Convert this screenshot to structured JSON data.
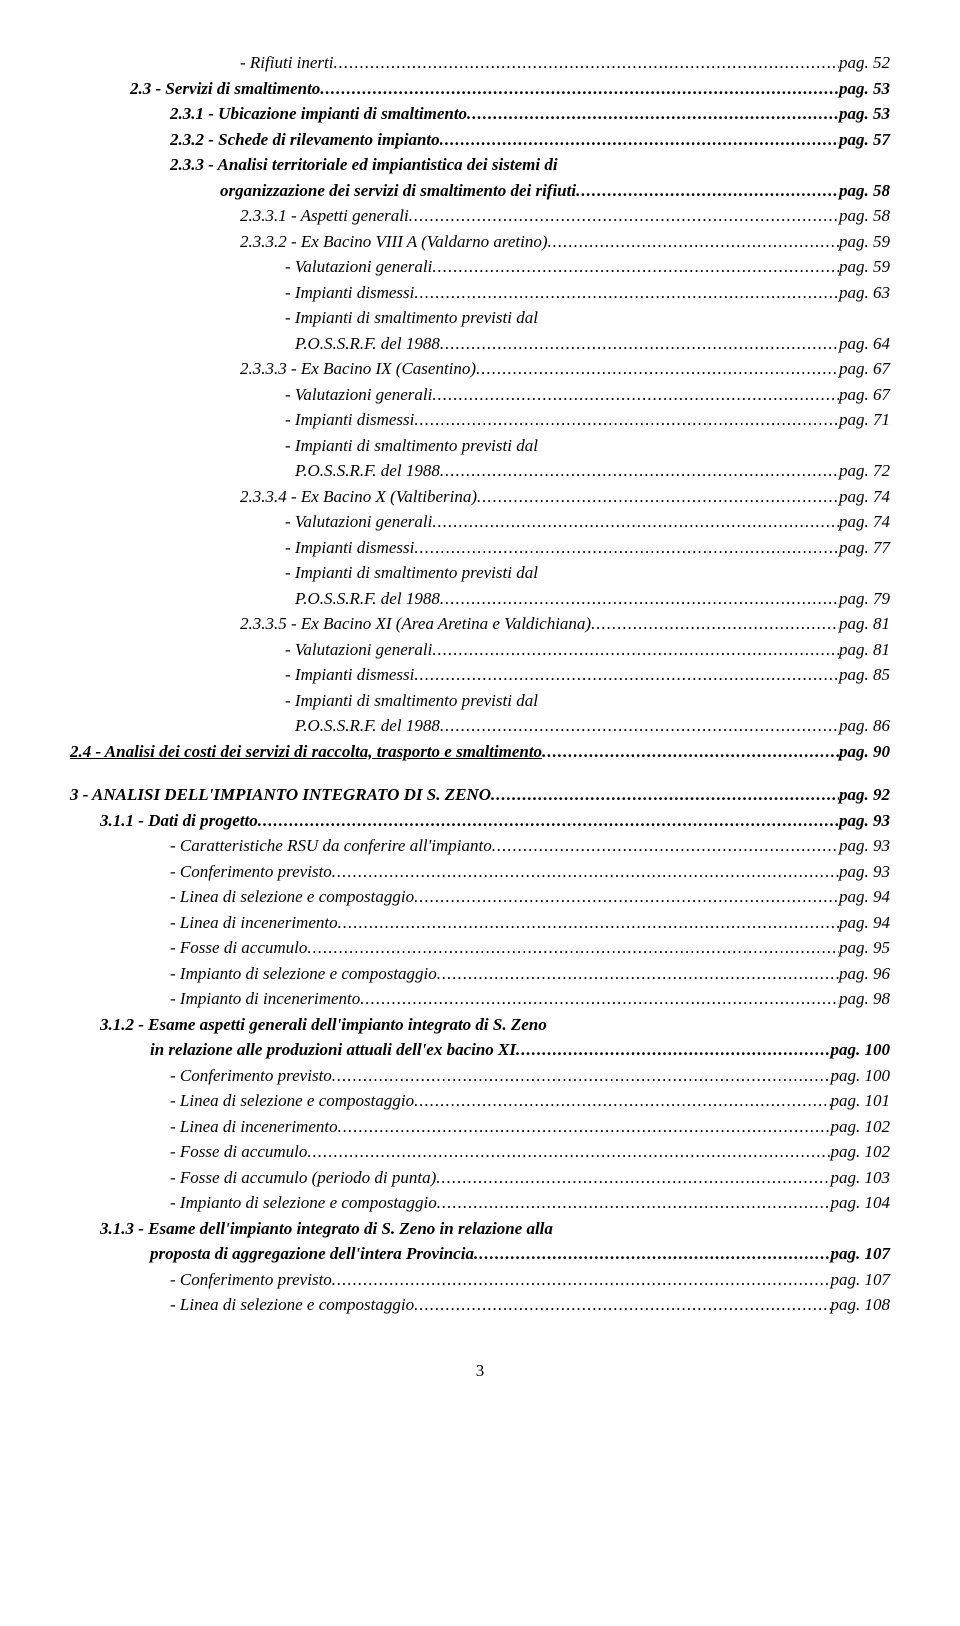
{
  "lines": [
    {
      "cls": "indent3 italic",
      "text": "- Rifiuti inerti",
      "page": "pag.  52"
    },
    {
      "cls": "indent1 boldital",
      "text": "2.3 - Servizi di smaltimento",
      "page": "pag.  53"
    },
    {
      "cls": "indent2 boldital",
      "text": "2.3.1 - Ubicazione impianti di smaltimento",
      "page": "pag.  53"
    },
    {
      "cls": "indent2 boldital",
      "text": "2.3.2 - Schede di rilevamento impianto",
      "page": "pag.  57"
    },
    {
      "cls": "indent2 boldital noflex",
      "text": "2.3.3 - Analisi territoriale ed impiantistica dei sistemi di"
    },
    {
      "cls": "indent2w boldital",
      "pad": 50,
      "text": "organizzazione dei servizi  di smaltimento dei rifiuti",
      "page": "pag.  58"
    },
    {
      "cls": "indent3 italic",
      "text": "2.3.3.1 - Aspetti generali",
      "page": "pag.  58"
    },
    {
      "cls": "indent3 italic",
      "text": "2.3.3.2 - Ex Bacino VIII A (Valdarno aretino)",
      "page": "pag.  59"
    },
    {
      "cls": "indent4 italic",
      "text": "- Valutazioni generali",
      "page": "pag.  59"
    },
    {
      "cls": "indent4 italic",
      "text": "- Impianti dismessi",
      "page": "pag.  63"
    },
    {
      "cls": "indent4 italic noflex",
      "text": "- Impianti di smaltimento previsti dal"
    },
    {
      "cls": "indent4 italic",
      "pad": 10,
      "text": "P.O.S.S.R.F. del 1988",
      "page": "pag.  64"
    },
    {
      "cls": "indent3 italic",
      "text": "2.3.3.3 - Ex Bacino IX (Casentino)",
      "page": "pag.  67"
    },
    {
      "cls": "indent4 italic",
      "text": "- Valutazioni generali",
      "page": "pag.  67"
    },
    {
      "cls": "indent4 italic",
      "text": "- Impianti dismessi",
      "page": "pag.  71"
    },
    {
      "cls": "indent4 italic noflex",
      "text": "- Impianti di smaltimento previsti dal"
    },
    {
      "cls": "indent4 italic",
      "pad": 10,
      "text": "P.O.S.S.R.F. del 1988",
      "page": "pag.  72"
    },
    {
      "cls": "indent3 italic",
      "text": "2.3.3.4 - Ex Bacino X (Valtiberina)",
      "page": "pag.  74"
    },
    {
      "cls": "indent4 italic",
      "text": "- Valutazioni generali",
      "page": "pag.  74"
    },
    {
      "cls": "indent4 italic",
      "text": "- Impianti dismessi",
      "page": "pag.  77"
    },
    {
      "cls": "indent4 italic noflex",
      "text": "- Impianti di smaltimento previsti dal"
    },
    {
      "cls": "indent4 italic",
      "pad": 10,
      "text": "P.O.S.S.R.F. del 1988",
      "page": "pag.  79"
    },
    {
      "cls": "indent3 italic",
      "text": "2.3.3.5 - Ex Bacino XI (Area Aretina e Valdichiana)",
      "page": "pag.  81"
    },
    {
      "cls": "indent4 italic",
      "text": "- Valutazioni generali",
      "page": "pag.  81"
    },
    {
      "cls": "indent4 italic",
      "text": "- Impianti dismessi",
      "page": "pag.  85"
    },
    {
      "cls": "indent4 italic noflex",
      "text": "- Impianti di smaltimento previsti dal"
    },
    {
      "cls": "indent4 italic",
      "pad": 10,
      "text": "P.O.S.S.R.F. del 1988",
      "page": "pag.  86"
    },
    {
      "cls": "indentA boldital",
      "underlineLabel": true,
      "text": "2.4 - Analisi dei costi dei servizi di raccolta, trasporto e smaltimento",
      "page": "pag.  90"
    },
    {
      "spacer": true
    },
    {
      "cls": "indentA boldital",
      "text": "3 - ANALISI DELL'IMPIANTO INTEGRATO DI S. ZENO",
      "page": "pag.  92"
    },
    {
      "cls": "indentB boldital",
      "text": "3.1.1 -  Dati di progetto",
      "page": "pag.  93"
    },
    {
      "cls": "indentC italic",
      "text": "- Caratteristiche RSU da conferire all'impianto",
      "page": "pag.  93"
    },
    {
      "cls": "indentC italic",
      "text": "- Conferimento previsto",
      "page": "pag.  93"
    },
    {
      "cls": "indentC italic",
      "text": "- Linea di selezione e compostaggio",
      "page": "pag.  94"
    },
    {
      "cls": "indentC italic",
      "text": "- Linea di incenerimento",
      "page": "pag.  94"
    },
    {
      "cls": "indentC italic",
      "text": "- Fosse di accumulo",
      "page": "pag.  95"
    },
    {
      "cls": "indentC italic",
      "text": "- Impianto di selezione e compostaggio",
      "page": "pag.  96"
    },
    {
      "cls": "indentC italic",
      "text": "- Impianto di incenerimento",
      "page": "pag.  98"
    },
    {
      "cls": "indentB boldital noflex",
      "text": "3.1.2 - Esame aspetti generali dell'impianto integrato di S. Zeno"
    },
    {
      "cls": "indentB boldital",
      "pad": 50,
      "text": "in relazione alle produzioni attuali dell'ex bacino XI",
      "page": "pag. 100"
    },
    {
      "cls": "indentC italic",
      "text": "- Conferimento previsto",
      "page": "pag. 100"
    },
    {
      "cls": "indentC italic",
      "text": "- Linea di selezione e compostaggio",
      "page": "pag. 101"
    },
    {
      "cls": "indentC italic",
      "text": "- Linea di incenerimento",
      "page": "pag. 102"
    },
    {
      "cls": "indentC italic",
      "text": "- Fosse di accumulo",
      "page": "pag. 102"
    },
    {
      "cls": "indentC italic",
      "text": "- Fosse di accumulo (periodo di punta)",
      "page": "pag. 103"
    },
    {
      "cls": "indentC italic",
      "text": "- Impianto di selezione e compostaggio",
      "page": "pag. 104"
    },
    {
      "cls": "indentB boldital noflex",
      "text": "3.1.3 - Esame dell'impianto integrato di S. Zeno in relazione alla"
    },
    {
      "cls": "indentB boldital",
      "pad": 50,
      "text": "proposta di aggregazione dell'intera Provincia",
      "page": "pag. 107"
    },
    {
      "cls": "indentC italic",
      "text": "- Conferimento previsto",
      "page": "pag. 107"
    },
    {
      "cls": "indentC italic",
      "text": "- Linea di selezione e compostaggio",
      "page": "pag. 108"
    }
  ],
  "pageNumber": "3"
}
